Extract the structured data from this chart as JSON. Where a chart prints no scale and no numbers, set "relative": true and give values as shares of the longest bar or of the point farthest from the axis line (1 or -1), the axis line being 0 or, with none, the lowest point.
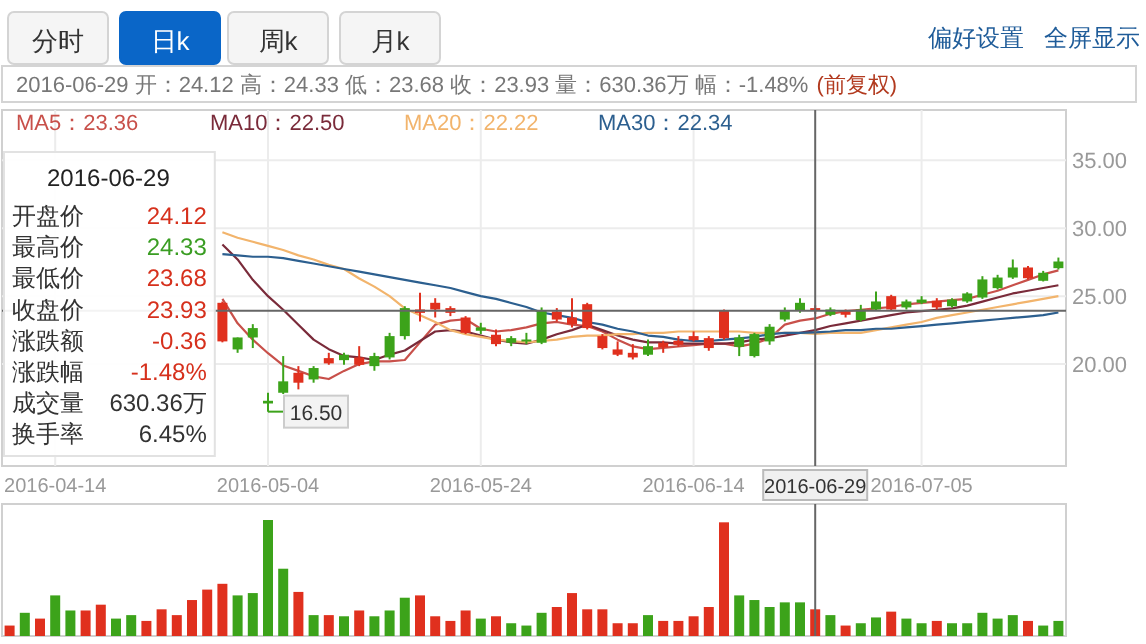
{
  "chart_data": [
    {
      "type": "candlestick",
      "title": "2016-06-29 开：24.12 高：24.33 低：23.68 收：23.93 量：630.36万 幅：-1.48%",
      "subtitle": "(前复权)",
      "categories": [
        null,
        null,
        null,
        "2016-04-14",
        null,
        null,
        null,
        null,
        null,
        null,
        null,
        null,
        null,
        null,
        null,
        null,
        null,
        "2016-05-04",
        null,
        null,
        null,
        null,
        null,
        null,
        null,
        null,
        null,
        null,
        null,
        null,
        null,
        "2016-05-24",
        null,
        null,
        null,
        null,
        null,
        null,
        null,
        null,
        null,
        null,
        null,
        null,
        null,
        "2016-06-14",
        null,
        null,
        null,
        null,
        null,
        null,
        null,
        "2016-06-29",
        null,
        null,
        null,
        null,
        null,
        null,
        "2016-07-05",
        null,
        null,
        null,
        null,
        null,
        null,
        null,
        null,
        null
      ],
      "ohlc": [
        null,
        null,
        null,
        null,
        null,
        null,
        null,
        null,
        null,
        null,
        null,
        null,
        null,
        null,
        [
          24.51,
          24.6,
          21.6,
          21.67
        ],
        [
          21.08,
          21.96,
          20.83,
          21.96
        ],
        [
          21.96,
          22.94,
          21.18,
          22.65
        ],
        [
          17.1,
          17.89,
          16.5,
          17.3
        ],
        [
          17.89,
          20.59,
          17.8,
          18.73
        ],
        [
          19.36,
          19.85,
          18.14,
          18.63
        ],
        [
          18.87,
          19.85,
          18.63,
          19.71
        ],
        [
          20.44,
          20.83,
          19.95,
          20.05
        ],
        [
          20.29,
          20.83,
          19.95,
          20.69
        ],
        [
          20.49,
          21.32,
          19.85,
          19.95
        ],
        [
          19.85,
          20.83,
          19.51,
          20.59
        ],
        [
          20.49,
          22.3,
          20.34,
          22.06
        ],
        [
          22.06,
          24.26,
          21.81,
          24.12
        ],
        [
          24.02,
          25.25,
          23.14,
          23.77
        ],
        [
          24.51,
          24.85,
          23.43,
          24.02
        ],
        [
          24.12,
          24.26,
          23.53,
          23.77
        ],
        [
          23.43,
          23.53,
          22.21,
          22.3
        ],
        [
          22.45,
          23.04,
          22.21,
          22.7
        ],
        [
          22.16,
          22.55,
          21.32,
          21.47
        ],
        [
          21.57,
          22.06,
          21.32,
          21.91
        ],
        [
          21.67,
          22.3,
          21.47,
          21.81
        ],
        [
          21.57,
          24.17,
          21.47,
          23.92
        ],
        [
          23.87,
          24.12,
          23.14,
          23.28
        ],
        [
          23.43,
          24.85,
          22.7,
          22.94
        ],
        [
          24.41,
          24.51,
          22.55,
          22.65
        ],
        [
          22.06,
          22.21,
          21.08,
          21.18
        ],
        [
          21.08,
          21.67,
          20.59,
          20.69
        ],
        [
          20.83,
          21.47,
          20.34,
          20.49
        ],
        [
          20.69,
          21.81,
          20.59,
          21.32
        ],
        [
          21.57,
          21.72,
          20.83,
          21.23
        ],
        [
          21.72,
          22.06,
          21.27,
          21.42
        ],
        [
          22.06,
          22.4,
          21.67,
          21.76
        ],
        [
          21.91,
          22.06,
          20.98,
          21.18
        ],
        [
          23.92,
          24.02,
          21.81,
          21.91
        ],
        [
          21.27,
          22.16,
          20.59,
          21.96
        ],
        [
          20.59,
          22.3,
          20.49,
          22.21
        ],
        [
          21.67,
          22.94,
          21.42,
          22.75
        ],
        [
          23.28,
          24.17,
          23.14,
          23.92
        ],
        [
          23.92,
          24.85,
          23.77,
          24.51
        ],
        [
          24.12,
          24.33,
          23.68,
          23.93
        ],
        [
          23.63,
          24.17,
          23.53,
          24.02
        ],
        [
          23.87,
          24.02,
          23.43,
          23.63
        ],
        [
          23.24,
          24.36,
          23.14,
          24.02
        ],
        [
          24.02,
          25.34,
          23.92,
          24.61
        ],
        [
          25.0,
          25.1,
          23.92,
          24.02
        ],
        [
          24.17,
          24.75,
          24.02,
          24.61
        ],
        [
          24.51,
          25.0,
          24.41,
          24.75
        ],
        [
          24.66,
          24.85,
          24.02,
          24.17
        ],
        [
          24.26,
          24.85,
          24.17,
          24.75
        ],
        [
          24.61,
          25.29,
          24.51,
          25.2
        ],
        [
          24.9,
          26.47,
          24.8,
          26.23
        ],
        [
          25.59,
          26.57,
          25.49,
          26.37
        ],
        [
          26.37,
          27.7,
          26.27,
          27.11
        ],
        [
          27.11,
          27.21,
          26.23,
          26.32
        ],
        [
          26.13,
          26.86,
          26.08,
          26.72
        ],
        [
          27.06,
          27.84,
          26.96,
          27.55
        ]
      ],
      "colors": [
        null,
        null,
        null,
        null,
        null,
        null,
        null,
        null,
        null,
        null,
        null,
        null,
        null,
        null,
        "#e0301e",
        "#3ca31a",
        "#3ca31a",
        "#3ca31a",
        "#3ca31a",
        "#e0301e",
        "#3ca31a",
        "#e0301e",
        "#3ca31a",
        "#e0301e",
        "#3ca31a",
        "#3ca31a",
        "#3ca31a",
        "#e0301e",
        "#e0301e",
        "#e0301e",
        "#e0301e",
        "#3ca31a",
        "#e0301e",
        "#3ca31a",
        "#3ca31a",
        "#3ca31a",
        "#e0301e",
        "#e0301e",
        "#e0301e",
        "#e0301e",
        "#e0301e",
        "#e0301e",
        "#3ca31a",
        "#e0301e",
        "#e0301e",
        "#e0301e",
        "#e0301e",
        "#e0301e",
        "#3ca31a",
        "#3ca31a",
        "#3ca31a",
        "#3ca31a",
        "#3ca31a",
        "#e0301e",
        "#3ca31a",
        "#e0301e",
        "#3ca31a",
        "#3ca31a",
        "#e0301e",
        "#3ca31a",
        "#3ca31a",
        "#e0301e",
        "#3ca31a",
        "#3ca31a",
        "#3ca31a",
        "#3ca31a",
        "#3ca31a",
        "#e0301e",
        "#3ca31a",
        "#3ca31a"
      ],
      "series": [
        {
          "name": "MA5：23.36",
          "type": "line",
          "color": "#c8504a",
          "values": [
            null,
            null,
            null,
            null,
            null,
            null,
            null,
            null,
            null,
            null,
            null,
            null,
            null,
            null,
            24.8,
            23.0,
            21.8,
            20.8,
            19.9,
            19.5,
            19.1,
            18.9,
            19.5,
            20.0,
            20.2,
            20.2,
            20.3,
            21.6,
            22.9,
            23.2,
            23.3,
            22.6,
            22.4,
            22.5,
            22.7,
            23.0,
            23.1,
            22.9,
            22.8,
            22.4,
            21.8,
            21.3,
            21.1,
            21.2,
            21.3,
            21.4,
            21.5,
            21.5,
            21.3,
            21.5,
            21.9,
            22.9,
            23.2,
            23.36,
            23.7,
            23.9,
            24.0,
            24.1,
            24.2,
            24.4,
            24.5,
            24.6,
            24.7,
            24.8,
            25.1,
            25.4,
            25.8,
            26.2,
            26.6,
            26.9
          ]
        },
        {
          "name": "MA10：22.50",
          "type": "line",
          "color": "#7a2b3a",
          "values": [
            null,
            null,
            null,
            null,
            null,
            null,
            null,
            null,
            null,
            null,
            null,
            null,
            null,
            null,
            28.8,
            27.7,
            26.2,
            25.0,
            24.0,
            22.9,
            21.8,
            21.1,
            20.6,
            20.5,
            20.3,
            20.7,
            21.0,
            21.7,
            22.4,
            22.5,
            22.4,
            22.1,
            21.8,
            21.6,
            21.5,
            21.8,
            22.2,
            22.5,
            22.9,
            22.5,
            22.1,
            21.8,
            21.6,
            21.6,
            21.5,
            21.5,
            21.5,
            21.5,
            21.6,
            21.8,
            21.9,
            22.1,
            22.3,
            22.5,
            22.8,
            23.0,
            23.2,
            23.4,
            23.6,
            23.8,
            23.9,
            24.0,
            24.1,
            24.3,
            24.6,
            24.9,
            25.2,
            25.4,
            25.6,
            25.8
          ]
        },
        {
          "name": "MA20：22.22",
          "type": "line",
          "color": "#f2b46c",
          "values": [
            null,
            null,
            null,
            null,
            null,
            null,
            null,
            null,
            null,
            null,
            null,
            null,
            null,
            null,
            29.7,
            29.3,
            29.0,
            28.7,
            28.4,
            28.0,
            27.7,
            27.3,
            27.0,
            26.3,
            25.7,
            25.0,
            24.1,
            23.6,
            23.1,
            22.5,
            22.2,
            22.0,
            21.8,
            21.7,
            21.6,
            21.7,
            21.8,
            22.0,
            22.1,
            22.1,
            22.2,
            22.2,
            22.3,
            22.3,
            22.4,
            22.4,
            22.4,
            22.4,
            22.4,
            22.3,
            22.3,
            22.3,
            22.3,
            22.22,
            22.3,
            22.3,
            22.3,
            22.5,
            22.7,
            22.9,
            23.1,
            23.4,
            23.6,
            23.8,
            24.0,
            24.2,
            24.4,
            24.6,
            24.8,
            25.0
          ]
        },
        {
          "name": "MA30：22.34",
          "type": "line",
          "color": "#2c5f8f",
          "values": [
            null,
            null,
            null,
            null,
            null,
            null,
            null,
            null,
            null,
            null,
            null,
            null,
            null,
            null,
            28.1,
            28.0,
            27.9,
            27.9,
            27.8,
            27.6,
            27.4,
            27.2,
            27.0,
            26.8,
            26.6,
            26.4,
            26.2,
            26.0,
            25.8,
            25.6,
            25.3,
            25.0,
            24.8,
            24.5,
            24.2,
            23.8,
            23.6,
            23.4,
            23.1,
            22.9,
            22.6,
            22.4,
            22.1,
            22.0,
            21.8,
            21.7,
            21.7,
            21.8,
            21.9,
            22.0,
            22.2,
            22.3,
            22.3,
            22.34,
            22.4,
            22.5,
            22.5,
            22.6,
            22.6,
            22.7,
            22.8,
            22.9,
            23.0,
            23.1,
            23.2,
            23.3,
            23.4,
            23.5,
            23.6,
            23.8
          ]
        }
      ],
      "ylim": [
        12.5,
        38.7
      ],
      "yticks": [
        {
          "value": 20,
          "label": "20.00"
        },
        {
          "value": 25,
          "label": "25.00"
        },
        {
          "value": 30,
          "label": "30.00"
        },
        {
          "value": 35,
          "label": "35.00"
        }
      ],
      "grid": true,
      "legend": "top left",
      "ref_lines": [
        {
          "axis": "x",
          "value": "2016-06-29",
          "color": "#666666"
        },
        {
          "axis": "y",
          "value": 23.93,
          "color": "#666666"
        }
      ],
      "annotations": [
        "分时",
        "日k",
        "周k",
        "月k",
        "偏好设置",
        "全屏显示",
        "2016-06-29",
        "开盘价",
        "24.12",
        "最高价",
        "24.33",
        "最低价",
        "23.68",
        "收盘价",
        "23.93",
        "涨跌额",
        "-0.36",
        "涨跌幅",
        "-1.48%",
        "成交量",
        "630.36万",
        "换手率",
        "6.45%",
        {
          "text": "16.50",
          "y": 16.5
        }
      ]
    },
    {
      "type": "bar",
      "relative": true,
      "tick_labels": false,
      "categories": [
        null,
        null,
        null,
        "2016-04-14",
        null,
        null,
        null,
        null,
        null,
        null,
        null,
        null,
        null,
        null,
        null,
        null,
        null,
        "2016-05-04",
        null,
        null,
        null,
        null,
        null,
        null,
        null,
        null,
        null,
        null,
        null,
        null,
        null,
        "2016-05-24",
        null,
        null,
        null,
        null,
        null,
        null,
        null,
        null,
        null,
        null,
        null,
        null,
        null,
        "2016-06-14",
        null,
        null,
        null,
        null,
        null,
        null,
        null,
        "2016-06-29",
        null,
        null,
        null,
        null,
        null,
        null,
        "2016-07-05",
        null,
        null,
        null,
        null,
        null,
        null,
        null,
        null,
        null
      ],
      "values": [
        0.09,
        0.2,
        0.15,
        0.35,
        0.22,
        0.22,
        0.27,
        0.15,
        0.18,
        0.13,
        0.23,
        0.18,
        0.31,
        0.4,
        0.45,
        0.35,
        0.37,
        1,
        0.58,
        0.38,
        0.18,
        0.18,
        0.17,
        0.22,
        0.17,
        0.22,
        0.33,
        0.35,
        0.17,
        0.13,
        0.22,
        0.15,
        0.17,
        0.11,
        0.09,
        0.2,
        0.25,
        0.37,
        0.23,
        0.23,
        0.11,
        0.11,
        0.18,
        0.13,
        0.13,
        0.17,
        0.25,
        0.98,
        0.35,
        0.31,
        0.25,
        0.29,
        0.29,
        0.23,
        0.18,
        0.09,
        0.11,
        0.16,
        0.21,
        0.15,
        0.11,
        0.13,
        0.11,
        0.11,
        0.2,
        0.15,
        0.18,
        0.13,
        0.09,
        0.13
      ],
      "colors": [
        "#e0301e",
        "#3ca31a",
        "#e0301e",
        "#3ca31a",
        "#3ca31a",
        "#e0301e",
        "#e0301e",
        "#3ca31a",
        "#3ca31a",
        "#e0301e",
        "#e0301e",
        "#e0301e",
        "#e0301e",
        "#e0301e",
        "#e0301e",
        "#3ca31a",
        "#3ca31a",
        "#3ca31a",
        "#3ca31a",
        "#e0301e",
        "#3ca31a",
        "#e0301e",
        "#3ca31a",
        "#e0301e",
        "#3ca31a",
        "#3ca31a",
        "#3ca31a",
        "#e0301e",
        "#e0301e",
        "#e0301e",
        "#e0301e",
        "#3ca31a",
        "#e0301e",
        "#3ca31a",
        "#3ca31a",
        "#3ca31a",
        "#e0301e",
        "#e0301e",
        "#e0301e",
        "#e0301e",
        "#e0301e",
        "#e0301e",
        "#3ca31a",
        "#e0301e",
        "#e0301e",
        "#e0301e",
        "#e0301e",
        "#e0301e",
        "#3ca31a",
        "#3ca31a",
        "#3ca31a",
        "#3ca31a",
        "#3ca31a",
        "#e0301e",
        "#3ca31a",
        "#e0301e",
        "#3ca31a",
        "#3ca31a",
        "#e0301e",
        "#3ca31a",
        "#3ca31a",
        "#e0301e",
        "#3ca31a",
        "#3ca31a",
        "#3ca31a",
        "#3ca31a",
        "#3ca31a",
        "#e0301e",
        "#3ca31a",
        "#3ca31a"
      ],
      "ref_lines": [
        {
          "axis": "x",
          "value": "2016-06-29",
          "color": "#666666"
        }
      ]
    }
  ]
}
